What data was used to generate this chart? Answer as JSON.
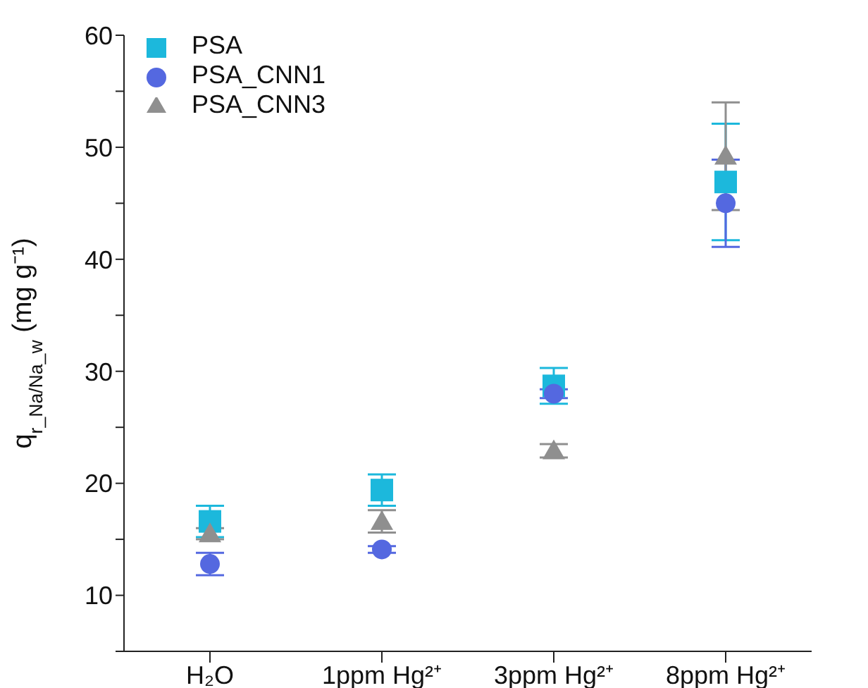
{
  "chart_data": {
    "type": "scatter",
    "ylabel": "q$_{r_Na/Na_w}$ (mg g⁻¹)",
    "categories": [
      "H₂O",
      "1ppm Hg²⁺",
      "3ppm Hg²⁺",
      "8ppm Hg²⁺"
    ],
    "series": [
      {
        "name": "PSA",
        "color": "#1cb8dc",
        "marker": "square",
        "values": [
          16.6,
          19.4,
          28.7,
          46.9
        ],
        "errors": [
          1.4,
          1.4,
          1.6,
          5.2
        ]
      },
      {
        "name": "PSA_CNN1",
        "color": "#5468e0",
        "marker": "circle",
        "values": [
          12.8,
          14.1,
          28.0,
          45.0
        ],
        "errors": [
          1.0,
          0.3,
          0.4,
          3.9
        ]
      },
      {
        "name": "PSA_CNN3",
        "color": "#8f8f8f",
        "marker": "triangle",
        "values": [
          15.5,
          16.6,
          22.9,
          49.2
        ],
        "errors": [
          0.5,
          1.0,
          0.6,
          4.8
        ]
      }
    ],
    "ylim": [
      5,
      60
    ],
    "yticks": [
      {
        "value": 5,
        "label": null
      },
      10,
      {
        "value": 15,
        "label": null
      },
      20,
      {
        "value": 25,
        "label": null
      },
      30,
      {
        "value": 35,
        "label": null
      },
      40,
      {
        "value": 45,
        "label": null
      },
      50,
      {
        "value": 55,
        "label": null
      },
      60
    ],
    "grid": false,
    "legend": "top left"
  }
}
